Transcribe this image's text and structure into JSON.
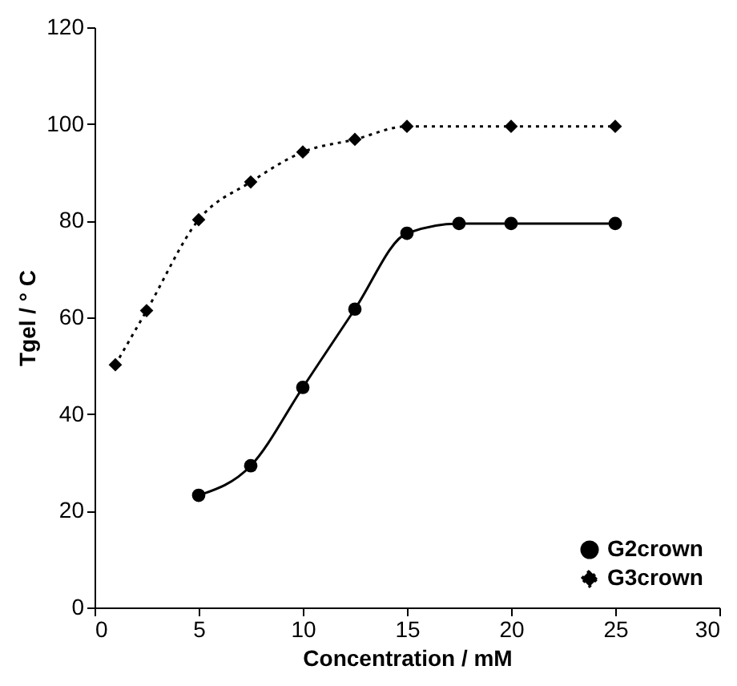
{
  "chart_data": {
    "type": "line",
    "xlabel": "Concentration / mM",
    "ylabel": "Tgel / ° C",
    "xlim": [
      0,
      30
    ],
    "xticks": [
      0,
      5,
      10,
      15,
      20,
      25,
      30
    ],
    "ylim": [
      0,
      120
    ],
    "yticks": [
      0,
      20,
      40,
      60,
      80,
      100,
      120
    ],
    "grid": false,
    "legend": "bottom right",
    "series": [
      {
        "name": "G2crown",
        "color": "#000000",
        "marker": "circle",
        "line_style": "solid",
        "x": [
          5,
          7.5,
          10,
          12.5,
          15,
          17.5,
          20,
          25
        ],
        "values": [
          23.2,
          29.3,
          45.5,
          61.7,
          77.4,
          79.4,
          79.4,
          79.4
        ]
      },
      {
        "name": "G3crown",
        "color": "#000000",
        "marker": "diamond",
        "line_style": "dotted",
        "x": [
          1,
          2.5,
          5,
          7.5,
          10,
          12.5,
          15,
          20,
          25
        ],
        "values": [
          50.2,
          61.4,
          80.2,
          88.0,
          94.2,
          96.8,
          99.5,
          99.5,
          99.5
        ]
      }
    ]
  }
}
